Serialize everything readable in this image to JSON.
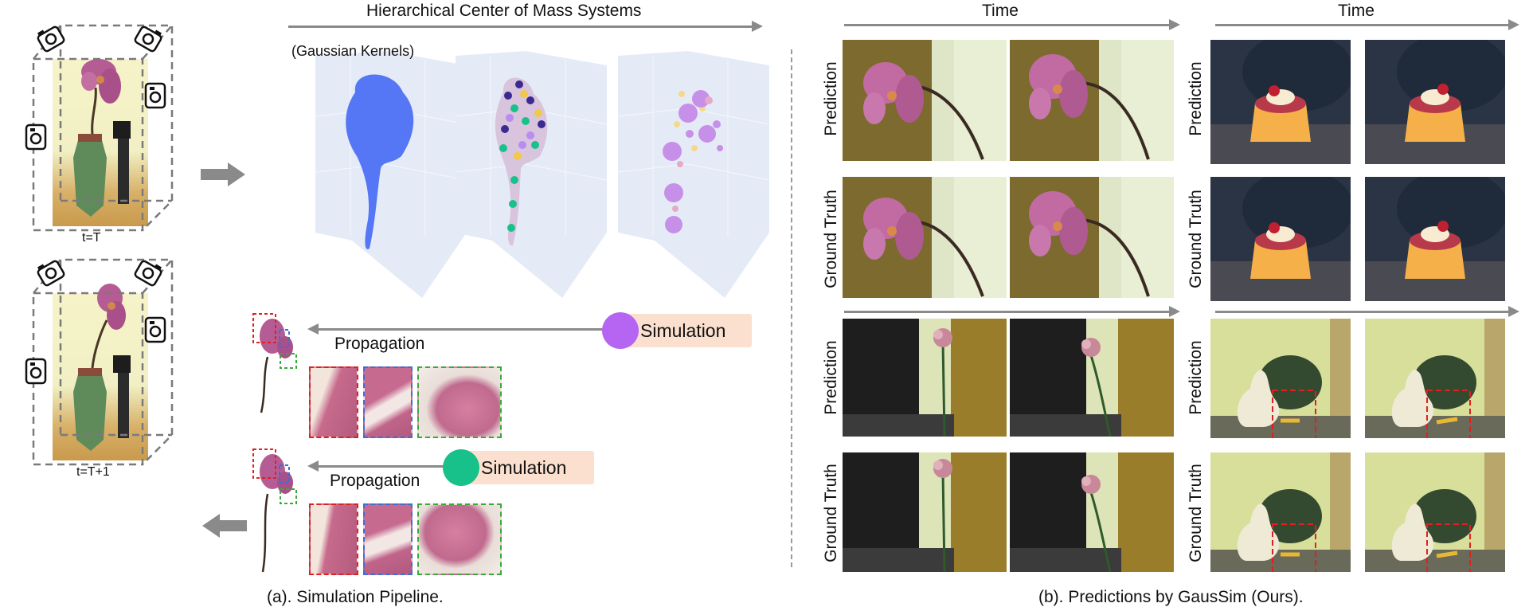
{
  "figure": {
    "hierarchical_title": "Hierarchical Center of Mass Systems",
    "gaussian_kernels_label": "(Gaussian Kernels)",
    "time_label_left": "Time",
    "time_label_right": "Time",
    "t_label_top": "t=T",
    "t_label_bottom": "t=T+1",
    "propagation_label_1": "Propagation",
    "propagation_label_2": "Propagation",
    "simulation_label_1": "Simulation",
    "simulation_label_2": "Simulation",
    "row_labels": {
      "r1": "Prediction",
      "r2": "Ground Truth",
      "r3": "Prediction",
      "r4": "Ground Truth",
      "r5": "Prediction",
      "r6": "Ground Truth",
      "r7": "Prediction",
      "r8": "Ground Truth"
    },
    "caption_a": "(a). Simulation Pipeline.",
    "caption_b": "(b). Predictions by GausSim (Ours).",
    "colors": {
      "arrow_gray": "#8a8a8a",
      "simulation_purple": "#b665f2",
      "simulation_green": "#19c18a",
      "pill_bg": "#fbe0cf",
      "gaussian_blue": "#5577f5",
      "panel_bg": "#e5ebf6"
    }
  }
}
